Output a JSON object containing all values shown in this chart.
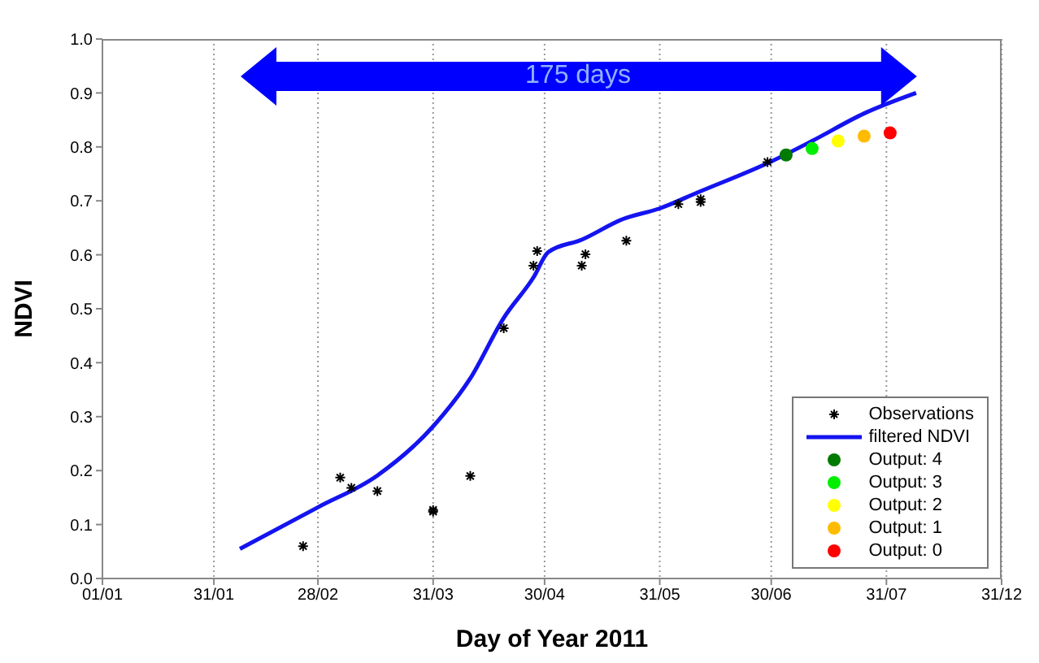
{
  "chart_data": {
    "type": "scatter",
    "xlabel": "Day of Year 2011",
    "ylabel": "NDVI",
    "xlim": [
      "--01-01",
      "--08-31"
    ],
    "xticks": [
      {
        "value": "--01-01",
        "label": "01/01"
      },
      {
        "value": "--01-31",
        "label": "31/01"
      },
      {
        "value": "--02-28",
        "label": "28/02"
      },
      {
        "value": "--03-31",
        "label": "31/03"
      },
      {
        "value": "--04-30",
        "label": "30/04"
      },
      {
        "value": "--05-31",
        "label": "31/05"
      },
      {
        "value": "--06-30",
        "label": "30/06"
      },
      {
        "value": "--07-31",
        "label": "31/07"
      },
      {
        "value": "--08-31",
        "label": "31/12"
      }
    ],
    "ylim": [
      0,
      1
    ],
    "yticks": [
      {
        "value": 0,
        "label": "0.0"
      },
      0.1,
      0.2,
      0.3,
      0.4,
      0.5,
      0.6,
      0.7,
      0.8,
      0.9,
      {
        "value": 1,
        "label": "1.0"
      }
    ],
    "grid": "x",
    "legend": "bottom right",
    "annotations": [
      "175 days"
    ],
    "series": [
      {
        "name": "Observations",
        "marker": "cross",
        "color": "#000000",
        "x": [
          "--02-24",
          "--03-06",
          "--03-09",
          "--03-16",
          "--03-31",
          "--03-31",
          "--04-10",
          "--04-19",
          "--04-27",
          "--04-28",
          "--05-10",
          "--05-11",
          "--05-22",
          "--06-05",
          "--06-11",
          "--06-11",
          "--06-29"
        ],
        "values": [
          0.06,
          0.187,
          0.168,
          0.162,
          0.124,
          0.127,
          0.19,
          0.464,
          0.58,
          0.607,
          0.58,
          0.601,
          0.626,
          0.694,
          0.703,
          0.698,
          0.772
        ]
      },
      {
        "name": "filtered NDVI",
        "type": "line",
        "marker": "none",
        "color": "#1414f0",
        "x": [
          "--02-07",
          "--02-28",
          "--03-16",
          "--03-31",
          "--04-10",
          "--04-19",
          "--04-27",
          "--05-01",
          "--05-10",
          "--05-21",
          "--05-31",
          "--06-10",
          "--06-30",
          "--07-11",
          "--07-25",
          "--08-08"
        ],
        "values": [
          0.055,
          0.132,
          0.191,
          0.282,
          0.371,
          0.483,
          0.558,
          0.605,
          0.628,
          0.666,
          0.686,
          0.715,
          0.773,
          0.811,
          0.862,
          0.9
        ]
      },
      {
        "name": "Output: 4",
        "marker": "circle",
        "color": "#007a00",
        "x": [
          "--07-04"
        ],
        "values": [
          0.785
        ]
      },
      {
        "name": "Output: 3",
        "marker": "circle",
        "color": "#00ee00",
        "x": [
          "--07-11"
        ],
        "values": [
          0.797
        ]
      },
      {
        "name": "Output: 2",
        "marker": "circle",
        "color": "#ffff00",
        "x": [
          "--07-18"
        ],
        "values": [
          0.811
        ]
      },
      {
        "name": "Output: 1",
        "marker": "circle",
        "color": "#ffbb00",
        "x": [
          "--07-25"
        ],
        "values": [
          0.82
        ]
      },
      {
        "name": "Output: 0",
        "marker": "circle",
        "color": "#ff0000",
        "x": [
          "--08-01"
        ],
        "values": [
          0.826
        ]
      }
    ]
  }
}
